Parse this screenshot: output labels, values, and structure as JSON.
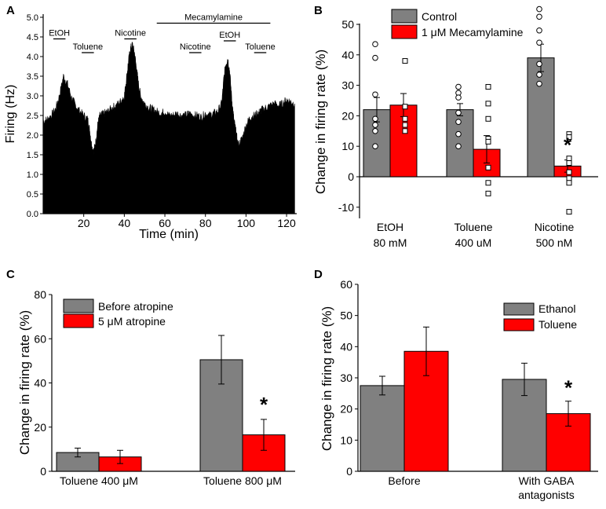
{
  "colors": {
    "control": "#808080",
    "treatment": "#ff0000",
    "trace": "#000000"
  },
  "chart_data": [
    {
      "panel": "A",
      "type": "area",
      "xlabel": "Time (min)",
      "ylabel": "Firing (Hz)",
      "xlim": [
        0,
        125
      ],
      "ylim": [
        0,
        5.0
      ],
      "xticks": [
        20,
        40,
        60,
        80,
        100,
        120
      ],
      "yticks": [
        "0.0",
        "0.5",
        "1.0",
        "1.5",
        "2.0",
        "2.5",
        "3.0",
        "3.5",
        "4.0",
        "4.5",
        "5.0"
      ],
      "series_points": {
        "x": [
          0,
          2,
          4,
          6,
          8,
          10,
          12,
          14,
          16,
          18,
          20,
          22,
          23,
          24,
          25,
          26,
          27,
          28,
          30,
          32,
          34,
          36,
          38,
          40,
          41,
          42,
          43,
          44,
          45,
          46,
          47,
          48,
          50,
          52,
          54,
          56,
          58,
          60,
          62,
          64,
          66,
          68,
          70,
          72,
          74,
          76,
          78,
          80,
          82,
          84,
          86,
          88,
          89,
          90,
          91,
          92,
          93,
          94,
          95,
          96,
          98,
          100,
          102,
          104,
          106,
          107,
          108,
          110,
          112,
          114,
          116,
          118,
          120,
          122,
          124
        ],
        "y": [
          2.35,
          2.4,
          2.5,
          2.65,
          3.0,
          3.5,
          3.3,
          2.95,
          2.75,
          2.6,
          2.5,
          2.4,
          2.1,
          1.7,
          1.6,
          1.85,
          2.3,
          2.5,
          2.55,
          2.6,
          2.7,
          2.75,
          2.85,
          3.0,
          3.4,
          3.85,
          4.2,
          4.3,
          4.1,
          3.7,
          3.3,
          3.0,
          2.8,
          2.7,
          2.65,
          2.6,
          2.55,
          2.6,
          2.5,
          2.5,
          2.55,
          2.5,
          2.5,
          2.55,
          2.5,
          2.5,
          2.45,
          2.55,
          2.5,
          2.55,
          2.6,
          2.8,
          3.4,
          3.8,
          3.95,
          3.6,
          2.9,
          2.4,
          2.1,
          1.75,
          1.9,
          2.25,
          2.45,
          2.5,
          2.55,
          2.6,
          2.65,
          2.7,
          2.75,
          2.8,
          2.75,
          2.8,
          2.9,
          2.85,
          2.8
        ]
      },
      "annotations": [
        {
          "label": "EtOH",
          "start": 5,
          "end": 11,
          "y": 4.45
        },
        {
          "label": "Toluene",
          "start": 19,
          "end": 25,
          "y": 4.1
        },
        {
          "label": "Nicotine",
          "start": 40,
          "end": 46,
          "y": 4.45
        },
        {
          "label": "Mecamylamine",
          "start": 56,
          "end": 112,
          "y": 4.85
        },
        {
          "label": "Nicotine",
          "start": 72,
          "end": 78,
          "y": 4.1
        },
        {
          "label": "EtOH",
          "start": 89,
          "end": 95,
          "y": 4.4
        },
        {
          "label": "Toluene",
          "start": 104,
          "end": 110,
          "y": 4.1
        }
      ]
    },
    {
      "panel": "B",
      "type": "bar",
      "ylabel": "Change in firing rate (%)",
      "ylim": [
        -15,
        60
      ],
      "yticks": [
        -10,
        0,
        10,
        20,
        30,
        40,
        50,
        60
      ],
      "categories": [
        {
          "line1": "EtOH",
          "line2": "80 mM"
        },
        {
          "line1": "Toluene",
          "line2": "400 uM"
        },
        {
          "line1": "Nicotine",
          "line2": "500 nM"
        }
      ],
      "series": [
        {
          "name": "Control",
          "values": [
            22,
            22,
            39
          ],
          "errors": [
            4,
            2,
            4.5
          ],
          "points": [
            [
              43.5,
              39,
              27,
              19,
              17,
              15,
              10
            ],
            [
              29.5,
              27.5,
              26,
              21,
              18,
              14,
              10
            ],
            [
              59.5,
              55,
              52.5,
              48,
              44,
              37,
              33.5,
              30.5
            ]
          ]
        },
        {
          "name": "1 μM Mecamylamine",
          "values": [
            23.5,
            9,
            3.5
          ],
          "errors": [
            3.8,
            4.5,
            2
          ],
          "points": [
            [
              48.5,
              38,
              23,
              19,
              17,
              15
            ],
            [
              29.5,
              24,
              19,
              12.5,
              11.5,
              3,
              -2,
              -5.5
            ],
            [
              14,
              13,
              6,
              4.5,
              1.5,
              -0.5,
              -2,
              -11.5
            ]
          ]
        }
      ],
      "significance": [
        {
          "category": 2,
          "series": 1,
          "marker": "*"
        }
      ]
    },
    {
      "panel": "C",
      "type": "bar",
      "ylabel": "Change in firing rate (%)",
      "ylim": [
        0,
        80
      ],
      "yticks": [
        0,
        20,
        40,
        60,
        80
      ],
      "categories": [
        {
          "line1": "Toluene 400 μM"
        },
        {
          "line1": "Toluene 800 μM"
        }
      ],
      "series": [
        {
          "name": "Before atropine",
          "values": [
            8.5,
            50.5
          ],
          "errors": [
            2,
            11
          ]
        },
        {
          "name": "5 μM atropine",
          "values": [
            6.5,
            16.5
          ],
          "errors": [
            3,
            7
          ]
        }
      ],
      "significance": [
        {
          "category": 1,
          "series": 1,
          "marker": "*"
        }
      ]
    },
    {
      "panel": "D",
      "type": "bar",
      "ylabel": "Change in firing rate (%)",
      "ylim": [
        0,
        60
      ],
      "yticks": [
        0,
        10,
        20,
        30,
        40,
        50,
        60
      ],
      "categories": [
        {
          "line1": "Before"
        },
        {
          "line1": "With GABA",
          "line2": "antagonists"
        }
      ],
      "series": [
        {
          "name": "Ethanol",
          "values": [
            27.5,
            29.5
          ],
          "errors": [
            3,
            5.2
          ]
        },
        {
          "name": "Toluene",
          "values": [
            38.5,
            18.5
          ],
          "errors": [
            7.8,
            4
          ]
        }
      ],
      "significance": [
        {
          "category": 1,
          "series": 1,
          "marker": "*"
        }
      ]
    }
  ]
}
